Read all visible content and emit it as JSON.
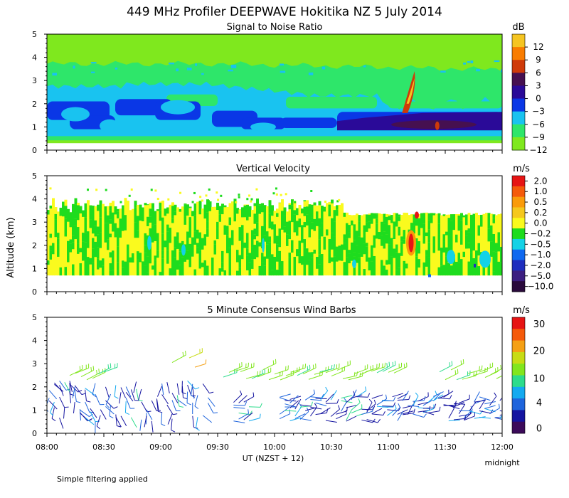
{
  "figure": {
    "title": "449 MHz Profiler DEEPWAVE Hokitika NZ  5 July 2014",
    "ylabel": "Altitude (km)",
    "xlabel": "UT  (NZST + 12)",
    "xticks": [
      "08:00",
      "08:30",
      "09:00",
      "09:30",
      "10:00",
      "10:30",
      "11:00",
      "11:30",
      "12:00"
    ],
    "x_end_note": "midnight",
    "footnote": "Simple filtering applied"
  },
  "colors": {
    "snr": [
      "#7fe81e",
      "#2ee66a",
      "#19c3f0",
      "#0a37e6",
      "#2a0a98",
      "#461050",
      "#cf3a09",
      "#f97c00",
      "#f5c522"
    ],
    "vel": [
      "#2a0a3c",
      "#3c1e80",
      "#1e2ebe",
      "#0f69f0",
      "#14d2e6",
      "#1edc1e",
      "#fafa1e",
      "#f5c81e",
      "#fa9b0a",
      "#f55a0a",
      "#e61414"
    ],
    "wind": [
      "#3c0a5a",
      "#1414a0",
      "#1e64dc",
      "#14aaf0",
      "#2ddc8c",
      "#82e61e",
      "#c8dc14",
      "#f5a014",
      "#f55a0a",
      "#e61414"
    ]
  },
  "chart_data": [
    {
      "type": "heatmap",
      "id": "snr",
      "title": "Signal to Noise Ratio",
      "unit": "dB",
      "ylabel": "Altitude (km)",
      "xlabel": "UT  (NZST + 12)",
      "x_range_hours": [
        8,
        12
      ],
      "ylim": [
        0,
        5
      ],
      "yticks": [
        "0",
        "1",
        "2",
        "3",
        "4",
        "5"
      ],
      "colorbar_ticks": [
        "12",
        "9",
        "6",
        "3",
        "0",
        "−3",
        "−6",
        "−9",
        "−12"
      ],
      "data_altitude_range_km": [
        0.3,
        5.0
      ],
      "layers_km_approx": [
        {
          "dB": -12,
          "from": 0.3,
          "to": 5.0
        },
        {
          "dB": -9,
          "from": 0.45,
          "to": 3.75
        },
        {
          "dB": -6,
          "from": 0.6,
          "to": 2.9
        },
        {
          "dB": -3,
          "from": 0.9,
          "to": 2.1
        },
        {
          "dB": 0,
          "from": 0.85,
          "to": 1.6,
          "x_hours": [
            10.5,
            12
          ]
        },
        {
          "dB": 9,
          "from": 1.5,
          "to": 3.3,
          "x_hours": [
            11.15,
            11.25
          ]
        }
      ]
    },
    {
      "type": "heatmap",
      "id": "velocity",
      "title": "Vertical Velocity",
      "unit": "m/s",
      "ylabel": "Altitude (km)",
      "x_range_hours": [
        8,
        12
      ],
      "ylim": [
        0,
        5
      ],
      "yticks": [
        "0",
        "1",
        "2",
        "3",
        "4",
        "5"
      ],
      "colorbar_ticks": [
        "2.0",
        "1.0",
        "0.5",
        "0.2",
        "0.0",
        "−0.2",
        "−0.5",
        "−1.0",
        "−2.0",
        "−5.0",
        "−10.0"
      ],
      "data_altitude_range_km": [
        0.7,
        4.0
      ],
      "dominant_values_m_s": [
        0.0,
        -0.2
      ],
      "notable": [
        {
          "value_m_s": 1.0,
          "x_hours": 11.2,
          "alt_km": [
            1.5,
            3.4
          ]
        },
        {
          "value_m_s": -0.5,
          "x_hours": [
            11.6,
            12.0
          ],
          "alt_km": [
            0.9,
            1.9
          ]
        }
      ]
    },
    {
      "type": "scatter",
      "id": "wind",
      "title": "5 Minute Consensus Wind Barbs",
      "unit": "m/s",
      "ylabel": "Altitude (km)",
      "x_range_hours": [
        8,
        12
      ],
      "ylim": [
        0,
        5
      ],
      "yticks": [
        "0",
        "1",
        "2",
        "3",
        "4",
        "5"
      ],
      "colorbar_ticks": [
        "30",
        "20",
        "10",
        "4",
        "0"
      ],
      "barb_layers": [
        {
          "alt_km": [
            0.4,
            2.2
          ],
          "speed_m_s": [
            2,
            6
          ],
          "direction": "from northwest"
        },
        {
          "alt_km": [
            2.1,
            2.8
          ],
          "speed_m_s": [
            8,
            14
          ],
          "direction": "from west-southwest"
        },
        {
          "alt_km": [
            3.0,
            3.3
          ],
          "speed_m_s": [
            14,
            20
          ],
          "x_hours": [
            9.1,
            9.3
          ]
        }
      ]
    }
  ]
}
